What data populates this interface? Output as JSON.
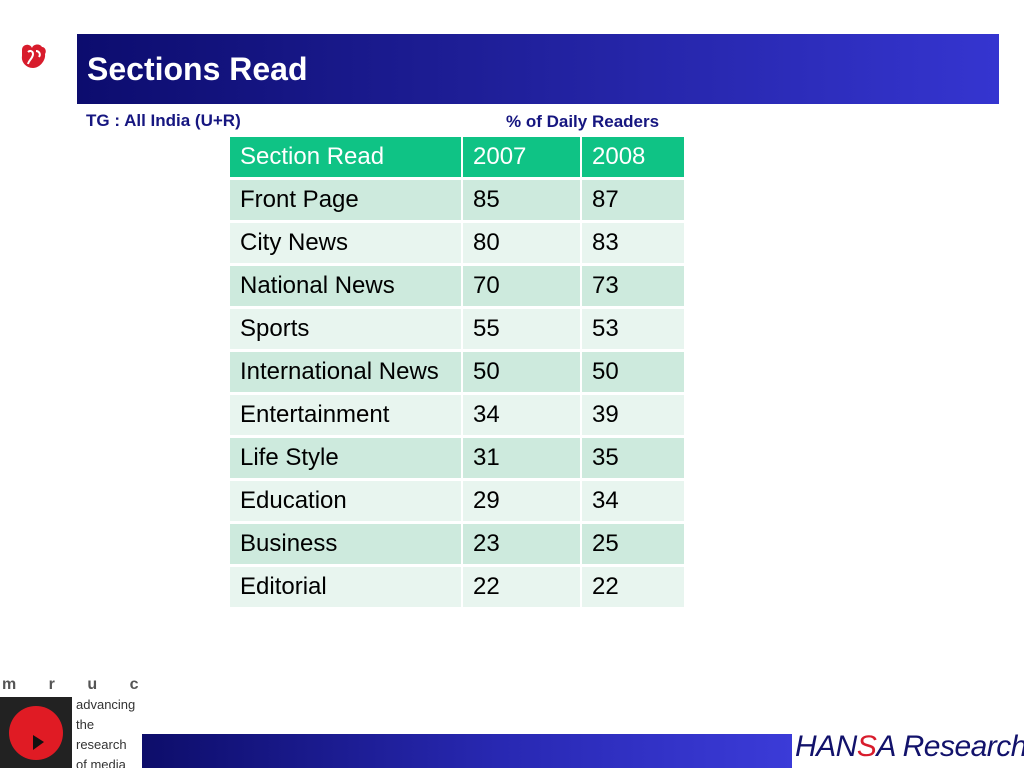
{
  "slide": {
    "title": "Sections Read",
    "target_group": "TG : All India (U+R)",
    "unit_label": "% of Daily Readers"
  },
  "table": {
    "headers": [
      "Section Read",
      "2007",
      "2008"
    ],
    "rows": [
      [
        "Front Page",
        "85",
        "87"
      ],
      [
        "City News",
        "80",
        "83"
      ],
      [
        "National News",
        "70",
        "73"
      ],
      [
        "Sports",
        "55",
        "53"
      ],
      [
        "International News",
        "50",
        "50"
      ],
      [
        "Entertainment",
        "34",
        "39"
      ],
      [
        "Life Style",
        "31",
        "35"
      ],
      [
        "Education",
        "29",
        "34"
      ],
      [
        "Business",
        "23",
        "25"
      ],
      [
        "Editorial",
        "22",
        "22"
      ]
    ]
  },
  "footer": {
    "mruc_letters": "m r u c",
    "mruc_tagline": [
      "advancing",
      "the",
      "research",
      "of media"
    ],
    "hansa_part1": "HAN",
    "hansa_s": "S",
    "hansa_part2": "A Research"
  },
  "colors": {
    "title_bar": "#1f1f99",
    "table_header": "#0fc385",
    "row_odd": "#cdeadd",
    "row_even": "#e8f5ef",
    "label_text": "#161680",
    "logo_red": "#d81c2c"
  },
  "icons": [
    "newspaper-bird-logo-icon",
    "mruc-play-logo-icon"
  ]
}
